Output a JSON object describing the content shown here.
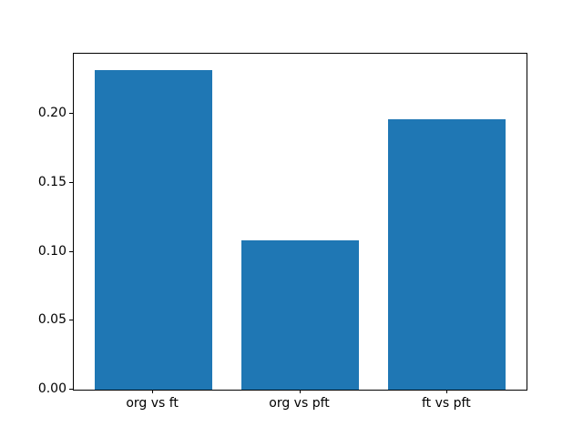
{
  "chart_data": {
    "type": "bar",
    "categories": [
      "org vs ft",
      "org vs pft",
      "ft vs pft"
    ],
    "values": [
      0.232,
      0.108,
      0.196
    ],
    "title": "",
    "xlabel": "",
    "ylabel": "",
    "ylim": [
      0,
      0.2436
    ],
    "yticks": [
      0.0,
      0.05,
      0.1,
      0.15,
      0.2
    ],
    "ytick_labels": [
      "0.00",
      "0.05",
      "0.10",
      "0.15",
      "0.20"
    ],
    "bar_color": "#1f77b4",
    "spine_color": "#000000",
    "background_color": "#ffffff",
    "grid": false,
    "legend": false
  }
}
